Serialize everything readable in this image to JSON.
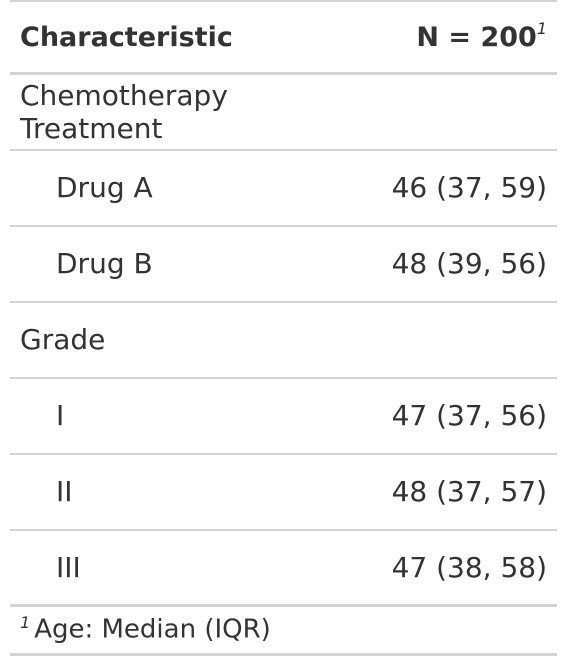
{
  "table": {
    "header": {
      "characteristic": "Characteristic",
      "n_label": "N = 200",
      "n_footnote_mark": "1"
    },
    "rows": [
      {
        "label": "Chemotherapy Treatment",
        "value": "",
        "level": "group"
      },
      {
        "label": "Drug A",
        "value": "46 (37, 59)",
        "level": "item"
      },
      {
        "label": "Drug B",
        "value": "48 (39, 56)",
        "level": "item"
      },
      {
        "label": "Grade",
        "value": "",
        "level": "group"
      },
      {
        "label": "I",
        "value": "47 (37, 56)",
        "level": "item"
      },
      {
        "label": "II",
        "value": "48 (37, 57)",
        "level": "item"
      },
      {
        "label": "III",
        "value": "47 (38, 58)",
        "level": "item"
      }
    ],
    "footnote": {
      "mark": "1",
      "text": "Age: Median (IQR)"
    }
  }
}
